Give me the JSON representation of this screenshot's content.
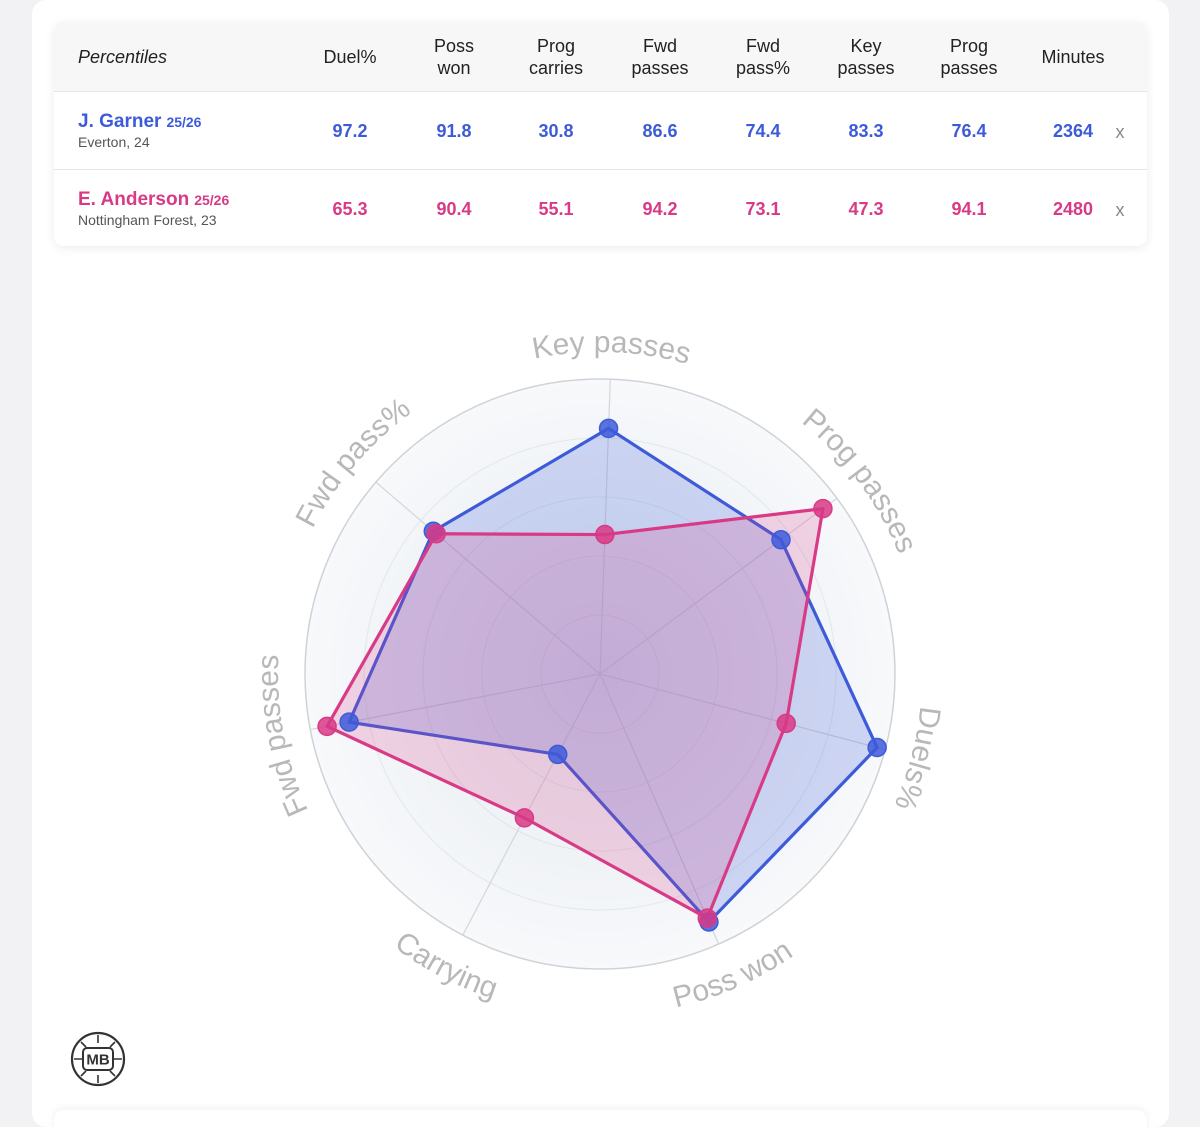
{
  "table": {
    "header_first": "Percentiles",
    "headers": [
      "Duel%",
      "Poss\nwon",
      "Prog\ncarries",
      "Fwd\npasses",
      "Fwd\npass%",
      "Key\npasses",
      "Prog\npasses",
      "Minutes"
    ],
    "close_label": "x",
    "players": [
      {
        "name": "J. Garner",
        "season": "25/26",
        "sub": "Everton, 24",
        "values": [
          "97.2",
          "91.8",
          "30.8",
          "86.6",
          "74.4",
          "83.3",
          "76.4",
          "2364"
        ],
        "color": "#3d5bd9"
      },
      {
        "name": "E. Anderson",
        "season": "25/26",
        "sub": "Nottingham Forest, 23",
        "values": [
          "65.3",
          "90.4",
          "55.1",
          "94.2",
          "73.1",
          "47.3",
          "94.1",
          "2480"
        ],
        "color": "#d83a86"
      }
    ]
  },
  "chart_data": {
    "type": "radar",
    "axes": [
      "Key passes",
      "Prog passes",
      "Duels%",
      "Poss won",
      "Carrying",
      "Fwd passes",
      "Fwd pass%"
    ],
    "range": [
      0,
      100
    ],
    "series": [
      {
        "name": "J. Garner",
        "color": "#3d5bd9",
        "values": [
          83.3,
          76.4,
          97.2,
          91.8,
          30.8,
          86.6,
          74.4
        ]
      },
      {
        "name": "E. Anderson",
        "color": "#d83a86",
        "values": [
          47.3,
          94.1,
          65.3,
          90.4,
          55.1,
          94.2,
          73.1
        ]
      }
    ]
  },
  "logo": {
    "text": "MB"
  }
}
